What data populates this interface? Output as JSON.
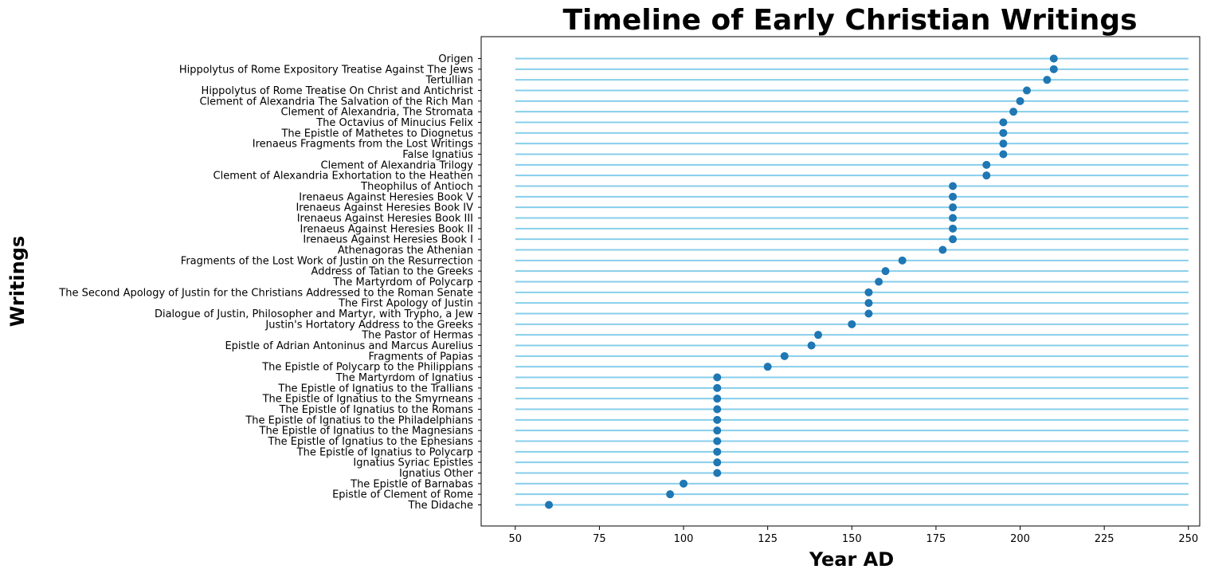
{
  "chart_data": {
    "type": "scatter",
    "title": "Timeline of Early Christian Writings",
    "xlabel": "Year AD",
    "ylabel": "Writings",
    "xlim": [
      40,
      253
    ],
    "xticks": [
      50,
      75,
      100,
      125,
      150,
      175,
      200,
      225,
      250
    ],
    "line_range": [
      50,
      250
    ],
    "line_color": "#87ceeb",
    "marker_color": "#1f77b4",
    "grid": false,
    "categories": [
      "The Didache",
      "Epistle of Clement of Rome",
      "The Epistle of Barnabas",
      "Ignatius Other",
      "Ignatius Syriac Epistles",
      "The Epistle of Ignatius to Polycarp",
      "The Epistle of Ignatius to the Ephesians",
      "The Epistle of Ignatius to the Magnesians",
      "The Epistle of Ignatius to the Philadelphians",
      "The Epistle of Ignatius to the Romans",
      "The Epistle of Ignatius to the Smyrneans",
      "The Epistle of Ignatius to the Trallians",
      "The Martyrdom of Ignatius",
      "The Epistle of Polycarp to the Philippians",
      "Fragments of Papias",
      "Epistle of Adrian Antoninus and Marcus Aurelius",
      "The Pastor of Hermas",
      "Justin's Hortatory Address to the Greeks",
      "Dialogue of Justin, Philosopher and Martyr, with Trypho, a Jew",
      "The First Apology of Justin",
      "The Second Apology of Justin for the Christians Addressed to the Roman Senate",
      "The Martyrdom of Polycarp",
      "Address of Tatian to the Greeks",
      "Fragments of the Lost Work of Justin on the Resurrection",
      "Athenagoras the Athenian",
      "Irenaeus Against Heresies Book I",
      "Irenaeus Against Heresies Book II",
      "Irenaeus Against Heresies Book III",
      "Irenaeus Against Heresies Book IV",
      "Irenaeus Against Heresies Book V",
      "Theophilus of Antioch",
      "Clement of Alexandria Exhortation to the Heathen",
      "Clement of Alexandria Trilogy",
      "False Ignatius",
      "Irenaeus Fragments from the Lost Writings",
      "The Epistle of Mathetes to Diognetus",
      "The Octavius of Minucius Felix",
      "Clement of Alexandria, The Stromata",
      "Clement of Alexandria The Salvation of the Rich Man",
      "Hippolytus of Rome Treatise On Christ and Antichrist",
      "Tertullian",
      "Hippolytus of Rome Expository Treatise Against The Jews",
      "Origen"
    ],
    "values": [
      60,
      96,
      100,
      110,
      110,
      110,
      110,
      110,
      110,
      110,
      110,
      110,
      110,
      125,
      130,
      138,
      140,
      150,
      155,
      155,
      155,
      158,
      160,
      165,
      177,
      180,
      180,
      180,
      180,
      180,
      180,
      190,
      190,
      195,
      195,
      195,
      195,
      198,
      200,
      202,
      208,
      210,
      210
    ]
  }
}
